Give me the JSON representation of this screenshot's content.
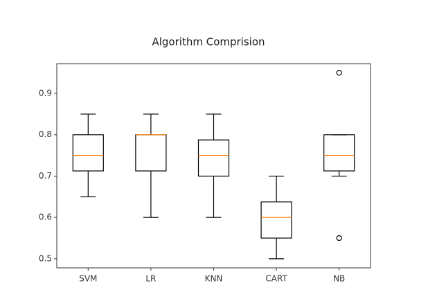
{
  "chart_data": {
    "type": "box",
    "title": "Algorithm Comprision",
    "categories": [
      "SVM",
      "LR",
      "KNN",
      "CART",
      "NB"
    ],
    "boxes": [
      {
        "whislo": 0.65,
        "q1": 0.7125,
        "median": 0.75,
        "q3": 0.8,
        "whishi": 0.85,
        "fliers": []
      },
      {
        "whislo": 0.6,
        "q1": 0.7125,
        "median": 0.8,
        "q3": 0.8,
        "whishi": 0.85,
        "fliers": []
      },
      {
        "whislo": 0.6,
        "q1": 0.7,
        "median": 0.75,
        "q3": 0.7875,
        "whishi": 0.85,
        "fliers": []
      },
      {
        "whislo": 0.5,
        "q1": 0.55,
        "median": 0.6,
        "q3": 0.6375,
        "whishi": 0.7,
        "fliers": []
      },
      {
        "whislo": 0.7,
        "q1": 0.7125,
        "median": 0.75,
        "q3": 0.8,
        "whishi": 0.8,
        "fliers": [
          0.95,
          0.55
        ]
      }
    ],
    "color": "#000000",
    "median_color": "#ff7f0e",
    "ylim": [
      0.478,
      0.972
    ],
    "yticks": [
      0.5,
      0.6,
      0.7,
      0.8,
      0.9
    ],
    "grid": false
  }
}
